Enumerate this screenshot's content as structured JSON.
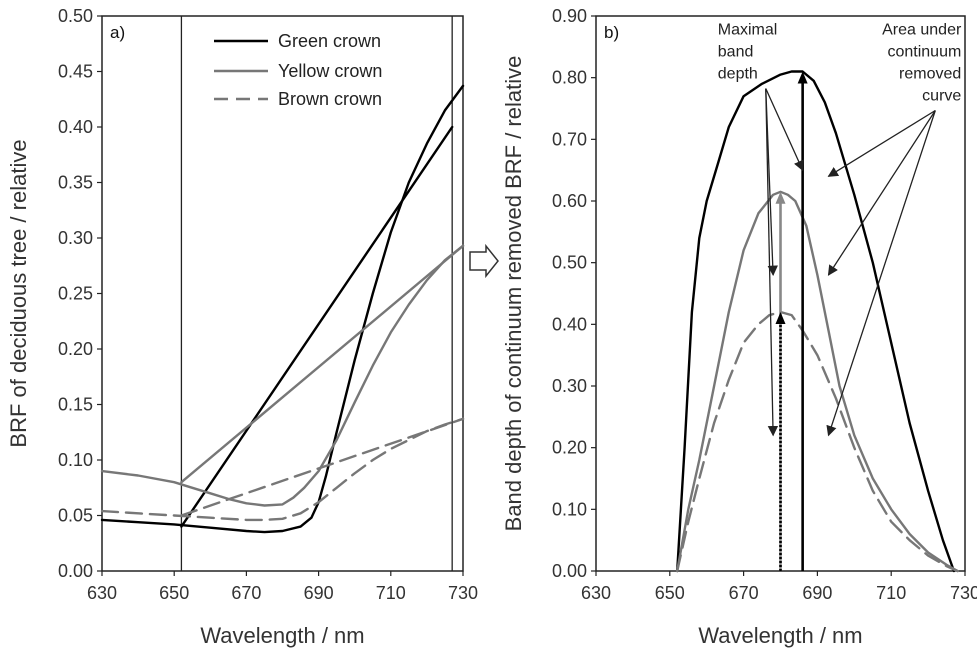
{
  "chart_data": [
    {
      "panel_label": "a)",
      "type": "line",
      "xlabel": "Wavelength / nm",
      "ylabel": "BRF of deciduous tree / relative",
      "xlim": [
        630,
        730
      ],
      "ylim": [
        0,
        0.5
      ],
      "xticks": [
        "630",
        "650",
        "670",
        "690",
        "710",
        "730"
      ],
      "yticks": [
        "0.00",
        "0.05",
        "0.10",
        "0.15",
        "0.20",
        "0.25",
        "0.30",
        "0.35",
        "0.40",
        "0.45",
        "0.50"
      ],
      "reference_lines_x": [
        652,
        727
      ],
      "legend": {
        "placement": "top-right"
      },
      "series": [
        {
          "name": "Green crown",
          "color": "#000000",
          "style": "solid",
          "x": [
            630,
            640,
            650,
            660,
            670,
            675,
            680,
            685,
            688,
            690,
            692,
            695,
            700,
            705,
            710,
            715,
            720,
            725,
            730
          ],
          "y": [
            0.046,
            0.044,
            0.042,
            0.039,
            0.036,
            0.035,
            0.036,
            0.04,
            0.048,
            0.062,
            0.085,
            0.125,
            0.19,
            0.25,
            0.305,
            0.35,
            0.385,
            0.415,
            0.437
          ]
        },
        {
          "name": "Green crown continuum",
          "color": "#000000",
          "style": "solid",
          "x": [
            652,
            727
          ],
          "y": [
            0.04,
            0.4
          ]
        },
        {
          "name": "Yellow crown",
          "color": "#777777",
          "style": "solid",
          "x": [
            630,
            640,
            650,
            655,
            660,
            665,
            670,
            675,
            680,
            683,
            686,
            690,
            695,
            700,
            705,
            710,
            715,
            720,
            725,
            730
          ],
          "y": [
            0.09,
            0.086,
            0.08,
            0.075,
            0.07,
            0.065,
            0.061,
            0.059,
            0.06,
            0.066,
            0.075,
            0.09,
            0.118,
            0.152,
            0.185,
            0.215,
            0.24,
            0.262,
            0.28,
            0.293
          ]
        },
        {
          "name": "Yellow crown continuum",
          "color": "#777777",
          "style": "solid",
          "x": [
            652,
            730
          ],
          "y": [
            0.08,
            0.293
          ]
        },
        {
          "name": "Brown crown",
          "color": "#777777",
          "style": "dashed",
          "x": [
            630,
            640,
            650,
            660,
            670,
            675,
            680,
            685,
            690,
            695,
            700,
            705,
            710,
            715,
            720,
            725,
            730
          ],
          "y": [
            0.054,
            0.052,
            0.05,
            0.048,
            0.046,
            0.046,
            0.047,
            0.052,
            0.062,
            0.075,
            0.088,
            0.1,
            0.11,
            0.118,
            0.126,
            0.132,
            0.137
          ]
        },
        {
          "name": "Brown crown continuum",
          "color": "#777777",
          "style": "dashed",
          "x": [
            652,
            730
          ],
          "y": [
            0.05,
            0.137
          ]
        }
      ]
    },
    {
      "panel_label": "b)",
      "type": "line",
      "xlabel": "Wavelength / nm",
      "ylabel": "Band depth of continuum removed BRF / relative",
      "xlim": [
        630,
        730
      ],
      "ylim": [
        0,
        0.9
      ],
      "xticks": [
        "630",
        "650",
        "670",
        "690",
        "710",
        "730"
      ],
      "yticks": [
        "0.00",
        "0.10",
        "0.20",
        "0.30",
        "0.40",
        "0.50",
        "0.60",
        "0.70",
        "0.80",
        "0.90"
      ],
      "series": [
        {
          "name": "Green crown",
          "color": "#000000",
          "style": "solid",
          "x": [
            652,
            654,
            656,
            658,
            660,
            663,
            666,
            670,
            675,
            680,
            683,
            686,
            689,
            692,
            695,
            700,
            705,
            710,
            715,
            720,
            724,
            727
          ],
          "y": [
            0.0,
            0.2,
            0.42,
            0.54,
            0.6,
            0.66,
            0.72,
            0.77,
            0.79,
            0.805,
            0.81,
            0.81,
            0.795,
            0.76,
            0.71,
            0.61,
            0.5,
            0.37,
            0.24,
            0.13,
            0.05,
            0.0
          ]
        },
        {
          "name": "Yellow crown",
          "color": "#777777",
          "style": "solid",
          "x": [
            652,
            655,
            658,
            662,
            666,
            670,
            674,
            678,
            680,
            682,
            684,
            687,
            690,
            693,
            696,
            700,
            705,
            710,
            715,
            720,
            725,
            728
          ],
          "y": [
            0.0,
            0.1,
            0.18,
            0.3,
            0.42,
            0.52,
            0.58,
            0.61,
            0.615,
            0.61,
            0.6,
            0.56,
            0.48,
            0.39,
            0.3,
            0.22,
            0.15,
            0.1,
            0.06,
            0.03,
            0.01,
            0.0
          ]
        },
        {
          "name": "Brown crown",
          "color": "#777777",
          "style": "dashed",
          "x": [
            652,
            655,
            658,
            662,
            666,
            670,
            674,
            677,
            680,
            683,
            686,
            690,
            695,
            700,
            705,
            710,
            715,
            720,
            725,
            728
          ],
          "y": [
            0.0,
            0.08,
            0.15,
            0.24,
            0.31,
            0.37,
            0.4,
            0.415,
            0.42,
            0.415,
            0.39,
            0.35,
            0.28,
            0.2,
            0.13,
            0.08,
            0.05,
            0.025,
            0.008,
            0.0
          ]
        }
      ],
      "depth_markers": [
        {
          "x": 686,
          "y": 0.81,
          "color": "#000000",
          "style": "solid"
        },
        {
          "x": 680,
          "y": 0.615,
          "color": "#888888",
          "style": "solid"
        },
        {
          "x": 680,
          "y": 0.42,
          "color": "#000000",
          "style": "dotted"
        }
      ],
      "annotations": [
        {
          "lines": [
            "Maximal",
            "band",
            "depth"
          ],
          "anchor": "start",
          "x": 663,
          "y": 0.87,
          "targets": [
            [
              686,
              0.65
            ],
            [
              678,
              0.48
            ],
            [
              678,
              0.22
            ]
          ]
        },
        {
          "lines": [
            "Area under",
            "continuum",
            "removed",
            "curve"
          ],
          "anchor": "end",
          "x": 729,
          "y": 0.87,
          "targets": [
            [
              693,
              0.64
            ],
            [
              693,
              0.48
            ],
            [
              693,
              0.22
            ]
          ]
        }
      ]
    }
  ]
}
